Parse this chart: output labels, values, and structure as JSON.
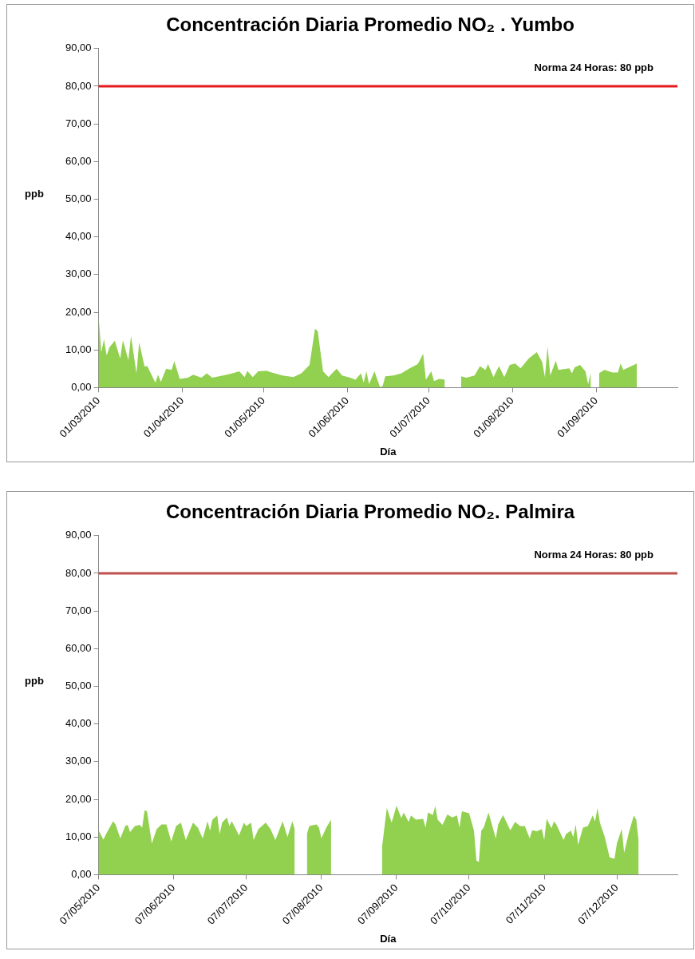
{
  "chart_data": [
    {
      "type": "area",
      "title": "Concentración Diaria Promedio NO₂ . Yumbo",
      "xlabel": "Día",
      "ylabel": "ppb",
      "color": "#92d050",
      "x": [
        "2010-03-01",
        "2010-03-02",
        "2010-03-03",
        "2010-03-04",
        "2010-03-05",
        "2010-03-07",
        "2010-03-09",
        "2010-03-10",
        "2010-03-12",
        "2010-03-13",
        "2010-03-15",
        "2010-03-16",
        "2010-03-18",
        "2010-03-19",
        "2010-03-22",
        "2010-03-23",
        "2010-03-24",
        "2010-03-26",
        "2010-03-28",
        "2010-03-29",
        "2010-03-31",
        "2010-04-03",
        "2010-04-05",
        "2010-04-08",
        "2010-04-10",
        "2010-04-12",
        "2010-04-16",
        "2010-04-19",
        "2010-04-22",
        "2010-04-24",
        "2010-04-25",
        "2010-04-27",
        "2010-04-29",
        "2010-05-02",
        "2010-05-04",
        "2010-05-08",
        "2010-05-12",
        "2010-05-15",
        "2010-05-18",
        "2010-05-20",
        "2010-05-21",
        "2010-05-23",
        "2010-05-25",
        "2010-05-28",
        "2010-05-30",
        "2010-06-02",
        "2010-06-04",
        "2010-06-06",
        "2010-06-07",
        "2010-06-08",
        "2010-06-09",
        "2010-06-11",
        "2010-06-13",
        "2010-06-14",
        "2010-06-15",
        "2010-06-18",
        "2010-06-21",
        "2010-06-24",
        "2010-06-27",
        "2010-06-29",
        "2010-06-30",
        "2010-07-02",
        "2010-07-03",
        "2010-07-05",
        "2010-07-07",
        "2010-07-10",
        "2010-07-13",
        "2010-07-15",
        "2010-07-18",
        "2010-07-20",
        "2010-07-22",
        "2010-07-23",
        "2010-07-25",
        "2010-07-27",
        "2010-07-29",
        "2010-07-31",
        "2010-08-02",
        "2010-08-04",
        "2010-08-07",
        "2010-08-10",
        "2010-08-12",
        "2010-08-13",
        "2010-08-14",
        "2010-08-15",
        "2010-08-17",
        "2010-08-18",
        "2010-08-22",
        "2010-08-23",
        "2010-08-24",
        "2010-08-26",
        "2010-08-28",
        "2010-08-29",
        "2010-08-30",
        "2010-08-31",
        "2010-09-02",
        "2010-09-04",
        "2010-09-07",
        "2010-09-09",
        "2010-09-10",
        "2010-09-11",
        "2010-09-13",
        "2010-09-16"
      ],
      "values": [
        19,
        9.4,
        12.8,
        8.5,
        10.7,
        12.4,
        7.7,
        12.6,
        7.3,
        13.7,
        3.8,
        12,
        5.6,
        5.7,
        1.3,
        3.4,
        1.5,
        5,
        4.7,
        7,
        2.3,
        2.6,
        3.4,
        2.6,
        3.8,
        2.6,
        3.2,
        3.7,
        4.3,
        2.8,
        4.4,
        2.8,
        4.3,
        4.5,
        4,
        3.2,
        2.8,
        3.8,
        6,
        15.6,
        15,
        4.3,
        2.8,
        5,
        3.2,
        2.6,
        2.1,
        3.8,
        1.3,
        4.3,
        0.9,
        4.3,
        0.2,
        0.4,
        3,
        3.2,
        3.8,
        5.1,
        6.2,
        9,
        2.1,
        4.3,
        1.7,
        2.3,
        2.1,
        null,
        3,
        2.6,
        3.2,
        5.7,
        4.7,
        6.2,
        2.8,
        5.7,
        2.8,
        6,
        6.4,
        5.1,
        7.7,
        9.4,
        6.8,
        2.8,
        10.9,
        3.2,
        7.1,
        4.7,
        5.1,
        3.8,
        5.4,
        6,
        4.3,
        0.9,
        4,
        null,
        3.8,
        4.7,
        4,
        4,
        6.4,
        4.7,
        5.4,
        6.4
      ],
      "xlim": [
        "2010-03-01",
        "2010-10-01"
      ],
      "xticks": [
        {
          "value": "2010-03-01",
          "label": "01/03/2010"
        },
        {
          "value": "2010-04-01",
          "label": "01/04/2010"
        },
        {
          "value": "2010-05-01",
          "label": "01/05/2010"
        },
        {
          "value": "2010-06-01",
          "label": "01/06/2010"
        },
        {
          "value": "2010-07-01",
          "label": "01/07/2010"
        },
        {
          "value": "2010-08-01",
          "label": "01/08/2010"
        },
        {
          "value": "2010-09-01",
          "label": "01/09/2010"
        }
      ],
      "ylim": [
        0,
        90
      ],
      "yticks": [
        {
          "value": 0,
          "label": "0,00"
        },
        {
          "value": 10,
          "label": "10,00"
        },
        {
          "value": 20,
          "label": "20,00"
        },
        {
          "value": 30,
          "label": "30,00"
        },
        {
          "value": 40,
          "label": "40,00"
        },
        {
          "value": 50,
          "label": "50,00"
        },
        {
          "value": 60,
          "label": "60,00"
        },
        {
          "value": 70,
          "label": "70,00"
        },
        {
          "value": 80,
          "label": "80,00"
        },
        {
          "value": 90,
          "label": "90,00"
        }
      ],
      "ref_lines": [
        {
          "axis": "y",
          "value": 80,
          "label": "Norma 24 Horas: 80 ppb",
          "color": "#e41a1c"
        }
      ],
      "grid": false
    },
    {
      "type": "area",
      "title": "Concentración Diaria Promedio NO₂. Palmira",
      "xlabel": "Día",
      "ylabel": "ppb",
      "color": "#92d050",
      "x": [
        "2010-05-07",
        "2010-05-09",
        "2010-05-10",
        "2010-05-13",
        "2010-05-14",
        "2010-05-16",
        "2010-05-18",
        "2010-05-19",
        "2010-05-20",
        "2010-05-22",
        "2010-05-24",
        "2010-05-25",
        "2010-05-26",
        "2010-05-27",
        "2010-05-29",
        "2010-05-31",
        "2010-06-02",
        "2010-06-04",
        "2010-06-06",
        "2010-06-08",
        "2010-06-10",
        "2010-06-12",
        "2010-06-15",
        "2010-06-17",
        "2010-06-19",
        "2010-06-21",
        "2010-06-22",
        "2010-06-23",
        "2010-06-25",
        "2010-06-26",
        "2010-06-27",
        "2010-06-29",
        "2010-06-30",
        "2010-07-01",
        "2010-07-04",
        "2010-07-06",
        "2010-07-07",
        "2010-07-09",
        "2010-07-10",
        "2010-07-12",
        "2010-07-15",
        "2010-07-17",
        "2010-07-19",
        "2010-07-21",
        "2010-07-22",
        "2010-07-24",
        "2010-07-26",
        "2010-07-27",
        "2010-07-29",
        "2010-08-01",
        "2010-08-02",
        "2010-08-05",
        "2010-08-06",
        "2010-08-07",
        "2010-08-09",
        "2010-08-11",
        "2010-08-20",
        "2010-09-01",
        "2010-09-03",
        "2010-09-05",
        "2010-09-07",
        "2010-09-09",
        "2010-09-10",
        "2010-09-12",
        "2010-09-13",
        "2010-09-15",
        "2010-09-18",
        "2010-09-19",
        "2010-09-20",
        "2010-09-22",
        "2010-09-23",
        "2010-09-24",
        "2010-09-26",
        "2010-09-28",
        "2010-09-30",
        "2010-10-02",
        "2010-10-03",
        "2010-10-04",
        "2010-10-07",
        "2010-10-09",
        "2010-10-10",
        "2010-10-11",
        "2010-10-12",
        "2010-10-13",
        "2010-10-15",
        "2010-10-18",
        "2010-10-19",
        "2010-10-21",
        "2010-10-24",
        "2010-10-26",
        "2010-10-28",
        "2010-10-30",
        "2010-11-01",
        "2010-11-02",
        "2010-11-04",
        "2010-11-06",
        "2010-11-07",
        "2010-11-08",
        "2010-11-10",
        "2010-11-11",
        "2010-11-12",
        "2010-11-15",
        "2010-11-16",
        "2010-11-18",
        "2010-11-19",
        "2010-11-20",
        "2010-11-21",
        "2010-11-23",
        "2010-11-25",
        "2010-11-27",
        "2010-11-28",
        "2010-11-29",
        "2010-11-30",
        "2010-12-02",
        "2010-12-04",
        "2010-12-06",
        "2010-12-07",
        "2010-12-09",
        "2010-12-10",
        "2010-12-12",
        "2010-12-14",
        "2010-12-15",
        "2010-12-16"
      ],
      "values": [
        11.8,
        9.3,
        10.7,
        14.2,
        13.3,
        9.6,
        12.9,
        13.2,
        11.3,
        12.9,
        13.2,
        12.5,
        17.1,
        16.8,
        8.3,
        12.1,
        13.3,
        13.3,
        8.8,
        12.9,
        13.8,
        9.2,
        13.8,
        12.5,
        9.6,
        14.2,
        11.7,
        14.6,
        15.7,
        10.8,
        13.8,
        15.2,
        12.9,
        14.2,
        10.4,
        13.8,
        12.9,
        13.8,
        9.2,
        12.1,
        13.8,
        12.1,
        9.2,
        12.5,
        14.2,
        10,
        14.2,
        12.1,
        null,
        10.8,
        12.9,
        13.3,
        12.5,
        9.6,
        12.5,
        14.6,
        null,
        7.1,
        17.7,
        13.8,
        18.3,
        15,
        16.5,
        14,
        15.7,
        14.6,
        14.8,
        12.5,
        16.5,
        15.8,
        18.2,
        14.6,
        13.2,
        16,
        15.2,
        15.7,
        12.5,
        16.8,
        16.3,
        11.7,
        3.8,
        3.3,
        11.7,
        12.5,
        16.5,
        9.6,
        13.3,
        15.8,
        11.8,
        14,
        12.9,
        12.9,
        9.6,
        11.8,
        11.5,
        12.1,
        9.2,
        14.8,
        12.3,
        14.2,
        13.3,
        9.2,
        10.8,
        11.7,
        10,
        13.3,
        7.9,
        12.5,
        12.9,
        15.7,
        14.2,
        17.7,
        13.8,
        10,
        4.6,
        4.2,
        8.3,
        12.1,
        5.8,
        11.3,
        15.7,
        14.6,
        8.8
      ],
      "xlim": [
        "2010-05-07",
        "2011-01-01"
      ],
      "xticks": [
        {
          "value": "2010-05-07",
          "label": "07/05/2010"
        },
        {
          "value": "2010-06-07",
          "label": "07/06/2010"
        },
        {
          "value": "2010-07-07",
          "label": "07/07/2010"
        },
        {
          "value": "2010-08-07",
          "label": "07/08/2010"
        },
        {
          "value": "2010-09-07",
          "label": "07/09/2010"
        },
        {
          "value": "2010-10-07",
          "label": "07/10/2010"
        },
        {
          "value": "2010-11-07",
          "label": "07/11/2010"
        },
        {
          "value": "2010-12-07",
          "label": "07/12/2010"
        }
      ],
      "ylim": [
        0,
        90
      ],
      "yticks": [
        {
          "value": 0,
          "label": "0,00"
        },
        {
          "value": 10,
          "label": "10,00"
        },
        {
          "value": 20,
          "label": "20,00"
        },
        {
          "value": 30,
          "label": "30,00"
        },
        {
          "value": 40,
          "label": "40,00"
        },
        {
          "value": 50,
          "label": "50,00"
        },
        {
          "value": 60,
          "label": "60,00"
        },
        {
          "value": 70,
          "label": "70,00"
        },
        {
          "value": 80,
          "label": "80,00"
        },
        {
          "value": 90,
          "label": "90,00"
        }
      ],
      "ref_lines": [
        {
          "axis": "y",
          "value": 80,
          "label": "Norma 24 Horas: 80 ppb",
          "color": "#c0504d"
        }
      ],
      "grid": false
    }
  ]
}
